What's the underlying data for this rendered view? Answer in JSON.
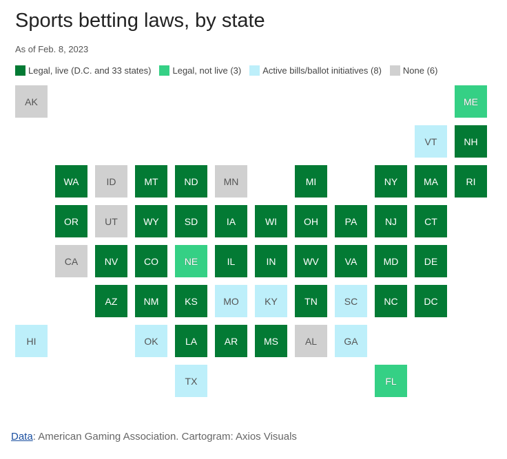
{
  "title": "Sports betting laws, by state",
  "subtitle": "As of Feb. 8, 2023",
  "legend": [
    {
      "key": "live",
      "label": "Legal, live (D.C. and 33 states)",
      "color": "#037a34"
    },
    {
      "key": "notlive",
      "label": "Legal, not live (3)",
      "color": "#35d085"
    },
    {
      "key": "active",
      "label": "Active bills/ballot initiatives (8)",
      "color": "#bdeffa"
    },
    {
      "key": "none",
      "label": "None (6)",
      "color": "#d0d0d0"
    }
  ],
  "states": [
    {
      "abbr": "AK",
      "row": 0,
      "col": 0,
      "cat": "none"
    },
    {
      "abbr": "ME",
      "row": 0,
      "col": 11,
      "cat": "notlive"
    },
    {
      "abbr": "VT",
      "row": 1,
      "col": 10,
      "cat": "active"
    },
    {
      "abbr": "NH",
      "row": 1,
      "col": 11,
      "cat": "live"
    },
    {
      "abbr": "WA",
      "row": 2,
      "col": 1,
      "cat": "live"
    },
    {
      "abbr": "ID",
      "row": 2,
      "col": 2,
      "cat": "none"
    },
    {
      "abbr": "MT",
      "row": 2,
      "col": 3,
      "cat": "live"
    },
    {
      "abbr": "ND",
      "row": 2,
      "col": 4,
      "cat": "live"
    },
    {
      "abbr": "MN",
      "row": 2,
      "col": 5,
      "cat": "none"
    },
    {
      "abbr": "MI",
      "row": 2,
      "col": 7,
      "cat": "live"
    },
    {
      "abbr": "NY",
      "row": 2,
      "col": 9,
      "cat": "live"
    },
    {
      "abbr": "MA",
      "row": 2,
      "col": 10,
      "cat": "live"
    },
    {
      "abbr": "RI",
      "row": 2,
      "col": 11,
      "cat": "live"
    },
    {
      "abbr": "OR",
      "row": 3,
      "col": 1,
      "cat": "live"
    },
    {
      "abbr": "UT",
      "row": 3,
      "col": 2,
      "cat": "none"
    },
    {
      "abbr": "WY",
      "row": 3,
      "col": 3,
      "cat": "live"
    },
    {
      "abbr": "SD",
      "row": 3,
      "col": 4,
      "cat": "live"
    },
    {
      "abbr": "IA",
      "row": 3,
      "col": 5,
      "cat": "live"
    },
    {
      "abbr": "WI",
      "row": 3,
      "col": 6,
      "cat": "live"
    },
    {
      "abbr": "OH",
      "row": 3,
      "col": 7,
      "cat": "live"
    },
    {
      "abbr": "PA",
      "row": 3,
      "col": 8,
      "cat": "live"
    },
    {
      "abbr": "NJ",
      "row": 3,
      "col": 9,
      "cat": "live"
    },
    {
      "abbr": "CT",
      "row": 3,
      "col": 10,
      "cat": "live"
    },
    {
      "abbr": "CA",
      "row": 4,
      "col": 1,
      "cat": "none"
    },
    {
      "abbr": "NV",
      "row": 4,
      "col": 2,
      "cat": "live"
    },
    {
      "abbr": "CO",
      "row": 4,
      "col": 3,
      "cat": "live"
    },
    {
      "abbr": "NE",
      "row": 4,
      "col": 4,
      "cat": "notlive"
    },
    {
      "abbr": "IL",
      "row": 4,
      "col": 5,
      "cat": "live"
    },
    {
      "abbr": "IN",
      "row": 4,
      "col": 6,
      "cat": "live"
    },
    {
      "abbr": "WV",
      "row": 4,
      "col": 7,
      "cat": "live"
    },
    {
      "abbr": "VA",
      "row": 4,
      "col": 8,
      "cat": "live"
    },
    {
      "abbr": "MD",
      "row": 4,
      "col": 9,
      "cat": "live"
    },
    {
      "abbr": "DE",
      "row": 4,
      "col": 10,
      "cat": "live"
    },
    {
      "abbr": "AZ",
      "row": 5,
      "col": 2,
      "cat": "live"
    },
    {
      "abbr": "NM",
      "row": 5,
      "col": 3,
      "cat": "live"
    },
    {
      "abbr": "KS",
      "row": 5,
      "col": 4,
      "cat": "live"
    },
    {
      "abbr": "MO",
      "row": 5,
      "col": 5,
      "cat": "active"
    },
    {
      "abbr": "KY",
      "row": 5,
      "col": 6,
      "cat": "active"
    },
    {
      "abbr": "TN",
      "row": 5,
      "col": 7,
      "cat": "live"
    },
    {
      "abbr": "SC",
      "row": 5,
      "col": 8,
      "cat": "active"
    },
    {
      "abbr": "NC",
      "row": 5,
      "col": 9,
      "cat": "live"
    },
    {
      "abbr": "DC",
      "row": 5,
      "col": 10,
      "cat": "live"
    },
    {
      "abbr": "HI",
      "row": 6,
      "col": 0,
      "cat": "active"
    },
    {
      "abbr": "OK",
      "row": 6,
      "col": 3,
      "cat": "active"
    },
    {
      "abbr": "LA",
      "row": 6,
      "col": 4,
      "cat": "live"
    },
    {
      "abbr": "AR",
      "row": 6,
      "col": 5,
      "cat": "live"
    },
    {
      "abbr": "MS",
      "row": 6,
      "col": 6,
      "cat": "live"
    },
    {
      "abbr": "AL",
      "row": 6,
      "col": 7,
      "cat": "none"
    },
    {
      "abbr": "GA",
      "row": 6,
      "col": 8,
      "cat": "active"
    },
    {
      "abbr": "TX",
      "row": 7,
      "col": 4,
      "cat": "active"
    },
    {
      "abbr": "FL",
      "row": 7,
      "col": 9,
      "cat": "notlive"
    }
  ],
  "footer": {
    "link_text": "Data",
    "text": ": American Gaming Association. Cartogram: Axios Visuals"
  }
}
